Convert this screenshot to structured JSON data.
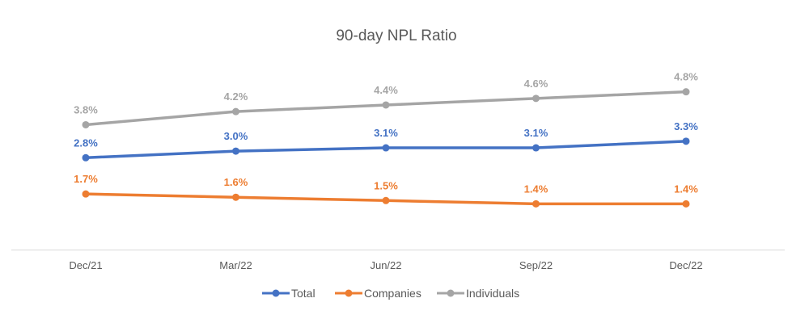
{
  "chart_data": {
    "type": "line",
    "title": "90-day NPL Ratio",
    "xlabel": "",
    "ylabel": "",
    "categories": [
      "Dec/21",
      "Mar/22",
      "Jun/22",
      "Sep/22",
      "Dec/22"
    ],
    "ylim": [
      0,
      6.5
    ],
    "grid": false,
    "legend_position": "bottom",
    "series": [
      {
        "name": "Total",
        "color": "#4472C4",
        "values": [
          2.8,
          3.0,
          3.1,
          3.1,
          3.3
        ],
        "labels": [
          "2.8%",
          "3.0%",
          "3.1%",
          "3.1%",
          "3.3%"
        ]
      },
      {
        "name": "Companies",
        "color": "#ED7D31",
        "values": [
          1.7,
          1.6,
          1.5,
          1.4,
          1.4
        ],
        "labels": [
          "1.7%",
          "1.6%",
          "1.5%",
          "1.4%",
          "1.4%"
        ]
      },
      {
        "name": "Individuals",
        "color": "#A5A5A5",
        "values": [
          3.8,
          4.2,
          4.4,
          4.6,
          4.8
        ],
        "labels": [
          "3.8%",
          "4.2%",
          "4.4%",
          "4.6%",
          "4.8%"
        ]
      }
    ]
  }
}
